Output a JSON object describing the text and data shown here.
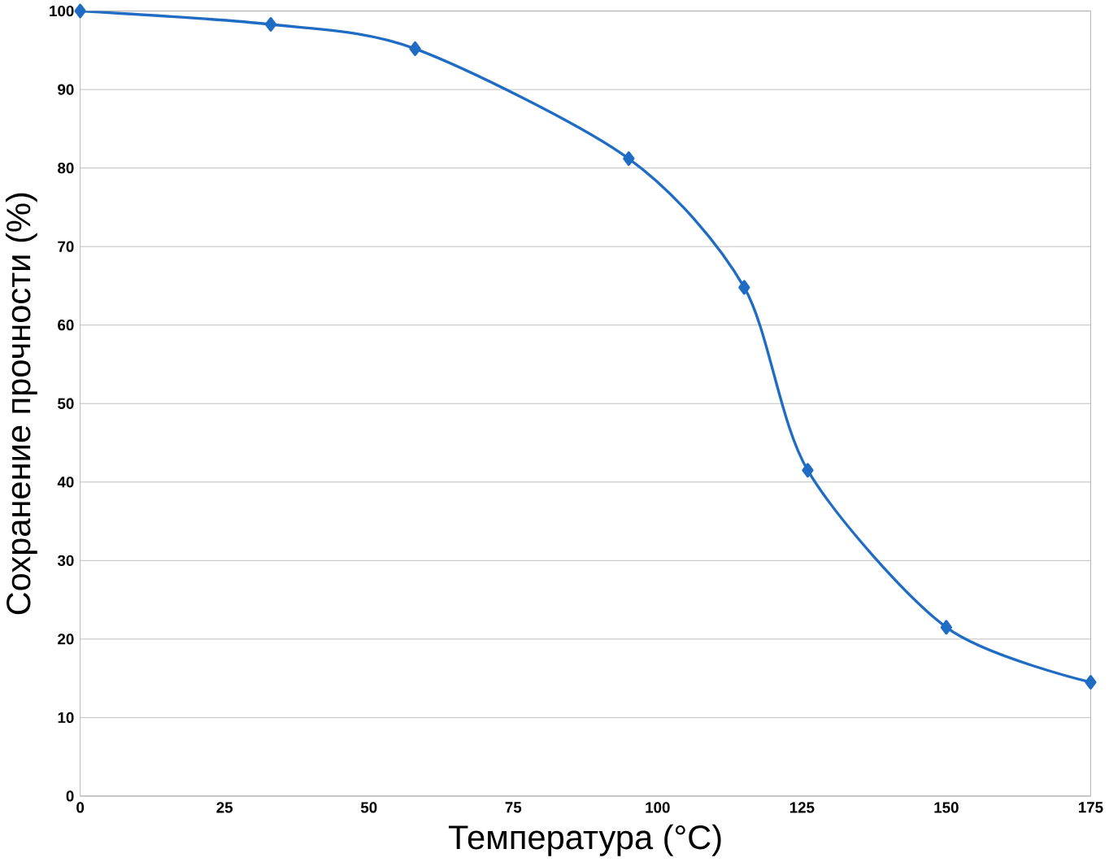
{
  "chart_data": {
    "type": "line",
    "xlabel": "Температура (°C)",
    "ylabel": "Сохранение прочности (%)",
    "x": [
      0,
      33,
      58,
      95,
      115,
      126,
      150,
      175
    ],
    "series": [
      {
        "color": "#1f6cc4",
        "values": [
          100,
          98.3,
          95.2,
          81.2,
          64.8,
          41.5,
          21.5,
          14.5
        ]
      }
    ],
    "xlim": [
      0,
      175
    ],
    "ylim": [
      0,
      100
    ],
    "xticks": [
      0,
      25,
      50,
      75,
      100,
      125,
      150,
      175
    ],
    "yticks": [
      0,
      10,
      20,
      30,
      40,
      50,
      60,
      70,
      80,
      90,
      100
    ],
    "grid": "y",
    "marker": "diamond",
    "line_style": "solid"
  }
}
